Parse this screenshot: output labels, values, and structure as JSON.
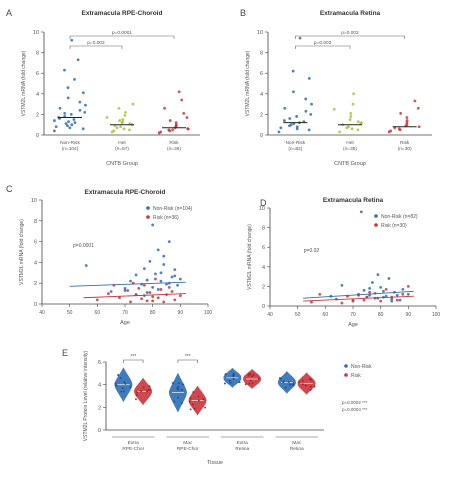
{
  "figure": {
    "panel_letters": [
      "A",
      "B",
      "C",
      "D",
      "E"
    ]
  },
  "chart_data": [
    {
      "panel": "A",
      "type": "scatter",
      "title": "Extramacula RPE-Choroid",
      "ylabel": "VSTM2L mRNA (fold change)",
      "xlabel": "CNTB Group",
      "ylim": [
        0,
        10
      ],
      "yticks": [
        "0",
        "2",
        "4",
        "6",
        "8",
        "10"
      ],
      "categories": [
        "Non-Risk\n(n=104)",
        "Het\n(n=57)",
        "Risk\n(n=36)"
      ],
      "colors": [
        "#2e6db4",
        "#a7c43a",
        "#c9343c"
      ],
      "series": [
        {
          "values": [
            0.4,
            0.6,
            0.8,
            1.0,
            1.1,
            1.3,
            1.5,
            1.6,
            1.8,
            2.0,
            2.2,
            2.4,
            2.6,
            2.9,
            3.2,
            3.6,
            4.1,
            4.6,
            5.4,
            6.3,
            7.3,
            9.2,
            1.2,
            0.9,
            1.7,
            2.1,
            0.7,
            1.4
          ]
        },
        {
          "values": [
            0.3,
            0.5,
            0.6,
            0.8,
            0.9,
            1.0,
            1.1,
            1.2,
            1.3,
            1.5,
            1.7,
            1.9,
            2.2,
            2.6,
            3.0,
            0.7,
            1.4,
            0.4
          ]
        },
        {
          "values": [
            0.2,
            0.3,
            0.4,
            0.5,
            0.6,
            0.7,
            0.8,
            0.9,
            1.0,
            1.2,
            1.4,
            1.7,
            2.1,
            2.6,
            3.4,
            4.2,
            0.6,
            0.5
          ]
        }
      ],
      "medians": [
        1.7,
        1.0,
        0.7
      ],
      "brackets": [
        {
          "from": 0,
          "to": 1,
          "label": "p=0.002"
        },
        {
          "from": 0,
          "to": 2,
          "label": "p=0.0001"
        }
      ]
    },
    {
      "panel": "B",
      "type": "scatter",
      "title": "Extramacula Retina",
      "ylabel": "VSTM2L mRNA (fold change)",
      "xlabel": "CNTB Group",
      "ylim": [
        0,
        10
      ],
      "yticks": [
        "0",
        "2",
        "4",
        "6",
        "8",
        "10"
      ],
      "categories": [
        "Non-Risk\n(n=82)",
        "Het\n(n=35)",
        "Risk\n(n=30)"
      ],
      "colors": [
        "#2e6db4",
        "#a7c43a",
        "#c9343c"
      ],
      "series": [
        {
          "values": [
            0.3,
            0.5,
            0.7,
            0.8,
            1.0,
            1.1,
            1.2,
            1.4,
            1.6,
            1.8,
            2.0,
            2.3,
            2.6,
            3.0,
            3.5,
            4.2,
            5.5,
            6.2,
            9.4,
            0.9,
            1.3,
            0.6
          ]
        },
        {
          "values": [
            0.3,
            0.5,
            0.6,
            0.8,
            1.0,
            1.1,
            1.3,
            1.5,
            1.8,
            2.1,
            2.5,
            3.0,
            4.0,
            0.7,
            1.2
          ]
        },
        {
          "values": [
            0.3,
            0.4,
            0.5,
            0.6,
            0.8,
            0.9,
            1.0,
            1.2,
            1.4,
            1.7,
            2.1,
            2.6,
            3.3,
            0.7
          ]
        }
      ],
      "medians": [
        1.2,
        1.0,
        0.8
      ],
      "brackets": [
        {
          "from": 0,
          "to": 1,
          "label": "p=0.002"
        },
        {
          "from": 0,
          "to": 2,
          "label": "p=0.002"
        }
      ]
    },
    {
      "panel": "C",
      "type": "scatter",
      "title": "Extramacula RPE-Choroid",
      "xlabel": "Age",
      "ylabel": "VSTM2L mRNA (fold change)",
      "xlim": [
        40,
        100
      ],
      "ylim": [
        0,
        10
      ],
      "xticks": [
        "40",
        "50",
        "60",
        "70",
        "80",
        "90",
        "100"
      ],
      "yticks": [
        "0",
        "2",
        "4",
        "6",
        "8",
        "10"
      ],
      "legend": [
        "Non-Risk (n=104)",
        "Risk (n=36)"
      ],
      "legend_position": "top-right",
      "annotation": "p=0.0001",
      "colors": [
        "#2e6db4",
        "#c9343c"
      ],
      "series": [
        {
          "name": "Non-Risk (n=104)",
          "x": [
            56,
            65,
            70,
            72,
            74,
            76,
            77,
            78,
            79,
            80,
            81,
            82,
            83,
            84,
            85,
            86,
            87,
            88,
            89,
            90,
            74,
            78,
            82,
            86,
            80,
            84,
            71,
            77,
            83,
            88
          ],
          "y": [
            3.7,
            1.2,
            1.5,
            2.2,
            2.8,
            1.9,
            3.4,
            2.3,
            4.1,
            1.6,
            2.9,
            5.2,
            2.2,
            3.8,
            1.9,
            6.0,
            2.6,
            3.3,
            1.8,
            2.4,
            0.9,
            1.1,
            1.4,
            2.0,
            7.6,
            4.6,
            1.3,
            0.8,
            3.0,
            2.7
          ],
          "trend": [
            [
              50,
              1.7
            ],
            [
              92,
              2.1
            ]
          ]
        },
        {
          "name": "Risk (n=36)",
          "x": [
            60,
            64,
            68,
            70,
            72,
            74,
            75,
            76,
            77,
            78,
            79,
            80,
            81,
            82,
            83,
            84,
            85,
            86,
            88,
            90,
            66,
            73,
            80,
            87
          ],
          "y": [
            0.4,
            1.0,
            0.6,
            1.3,
            0.2,
            0.9,
            1.5,
            0.5,
            1.8,
            0.3,
            1.1,
            0.7,
            2.4,
            0.6,
            1.4,
            0.2,
            0.9,
            1.6,
            0.4,
            0.8,
            1.8,
            2.0,
            0.3,
            1.2
          ],
          "trend": [
            [
              55,
              0.6
            ],
            [
              92,
              1.0
            ]
          ]
        }
      ]
    },
    {
      "panel": "D",
      "type": "scatter",
      "title": "Extramacula Retina",
      "xlabel": "Age",
      "ylabel": "VSTM2L mRNA (fold change)",
      "xlim": [
        40,
        100
      ],
      "ylim": [
        0,
        10
      ],
      "xticks": [
        "40",
        "50",
        "60",
        "70",
        "80",
        "90",
        "100"
      ],
      "yticks": [
        "0",
        "2",
        "4",
        "6",
        "8",
        "10"
      ],
      "legend": [
        "Non-Risk (n=82)",
        "Risk (n=30)"
      ],
      "legend_position": "top-right",
      "annotation": "p=0.02",
      "colors": [
        "#2e6db4",
        "#c9343c"
      ],
      "series": [
        {
          "name": "Non-Risk (n=82)",
          "x": [
            62,
            66,
            70,
            72,
            74,
            75,
            76,
            77,
            78,
            79,
            80,
            81,
            82,
            83,
            84,
            85,
            86,
            87,
            88,
            90,
            73,
            79,
            84,
            76,
            81
          ],
          "y": [
            1.0,
            2.1,
            0.6,
            1.2,
            1.6,
            0.9,
            1.1,
            2.4,
            1.3,
            0.8,
            1.9,
            1.5,
            1.0,
            2.8,
            0.7,
            1.4,
            1.1,
            0.6,
            1.7,
            1.2,
            9.6,
            3.2,
            0.5,
            1.8,
            0.9
          ],
          "trend": [
            [
              52,
              0.8
            ],
            [
              92,
              1.5
            ]
          ]
        },
        {
          "name": "Risk (n=30)",
          "x": [
            55,
            58,
            64,
            68,
            70,
            72,
            74,
            76,
            78,
            80,
            82,
            84,
            86,
            88,
            90,
            66,
            75
          ],
          "y": [
            0.4,
            1.2,
            0.7,
            1.0,
            0.5,
            1.1,
            0.6,
            1.4,
            0.8,
            0.5,
            1.7,
            0.9,
            0.6,
            1.2,
            2.0,
            0.3,
            0.9
          ],
          "trend": [
            [
              52,
              0.5
            ],
            [
              92,
              1.0
            ]
          ]
        }
      ]
    },
    {
      "panel": "E",
      "type": "scatter",
      "xlabel": "Tissue",
      "ylabel": "VSTM2L Protein Level (relative intensity)",
      "ylim": [
        0,
        6
      ],
      "yticks": [
        "0",
        "2",
        "4",
        "6"
      ],
      "groups": [
        "Extra\nRPE-Chor",
        "Mac\nRPE-Chor",
        "Extra\nRetina",
        "Mac\nRetina"
      ],
      "legend": [
        "Non-Risk",
        "Risk"
      ],
      "legend_position": "right",
      "stats_text": [
        "p=0.0002 ***",
        "p=0.0004 ***"
      ],
      "bracket_labels": [
        "***",
        "***"
      ],
      "colors": [
        "#2e6db4",
        "#c9343c"
      ],
      "series": [
        {
          "name": "Non-Risk",
          "centers": [
            4.0,
            3.3,
            4.6,
            4.2
          ],
          "spread": [
            0.7,
            0.8,
            0.4,
            0.45
          ]
        },
        {
          "name": "Risk",
          "centers": [
            3.4,
            2.6,
            4.5,
            4.1
          ],
          "spread": [
            0.55,
            0.6,
            0.4,
            0.45
          ]
        }
      ]
    }
  ]
}
